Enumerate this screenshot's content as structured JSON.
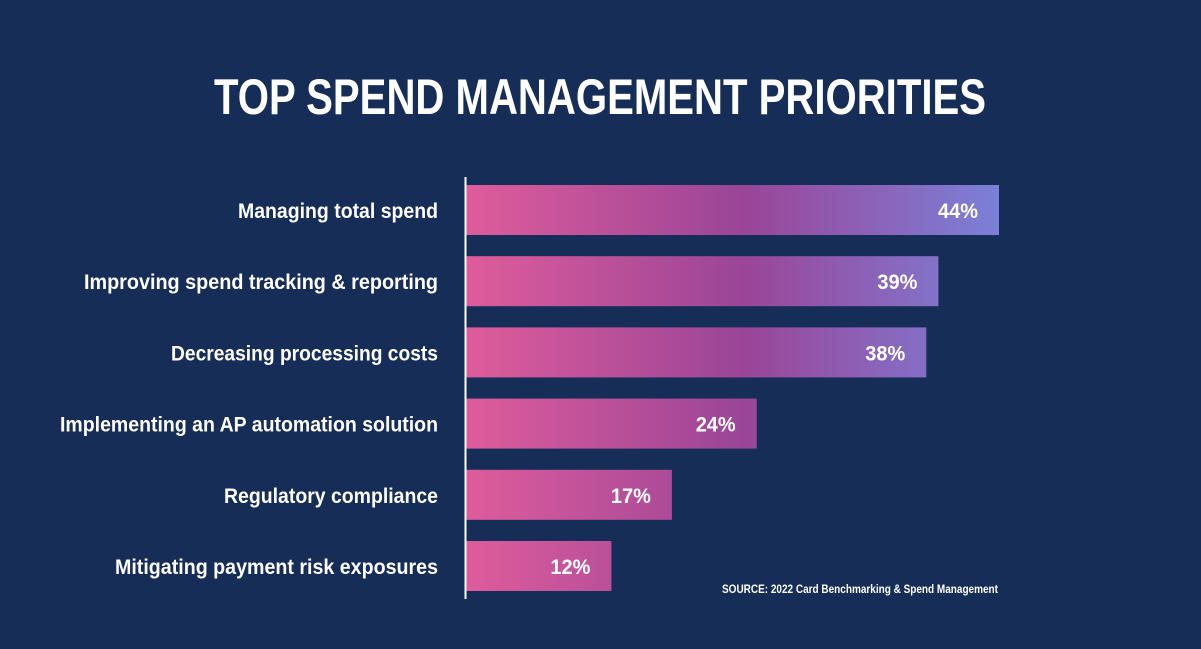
{
  "colors": {
    "background": "#162d57",
    "bar_start": "#de5c9b",
    "bar_mid": "#9a4597",
    "bar_end": "#7b80d8",
    "text": "#ffffff",
    "axis": "#ffffff"
  },
  "chart_data": {
    "type": "bar",
    "orientation": "horizontal",
    "title": "TOP SPEND MANAGEMENT PRIORITIES",
    "categories": [
      "Managing total spend",
      "Improving spend tracking  & reporting",
      "Decreasing processing costs",
      "Implementing an AP automation solution",
      "Regulatory compliance",
      "Mitigating payment risk exposures"
    ],
    "values": [
      44,
      39,
      38,
      24,
      17,
      12
    ],
    "value_labels": [
      "44%",
      "39%",
      "38%",
      "24%",
      "17%",
      "12%"
    ],
    "value_unit": "%",
    "xlim": [
      0,
      44
    ],
    "grid": false,
    "source": "SOURCE: 2022 Card Benchmarking & Spend Management"
  }
}
